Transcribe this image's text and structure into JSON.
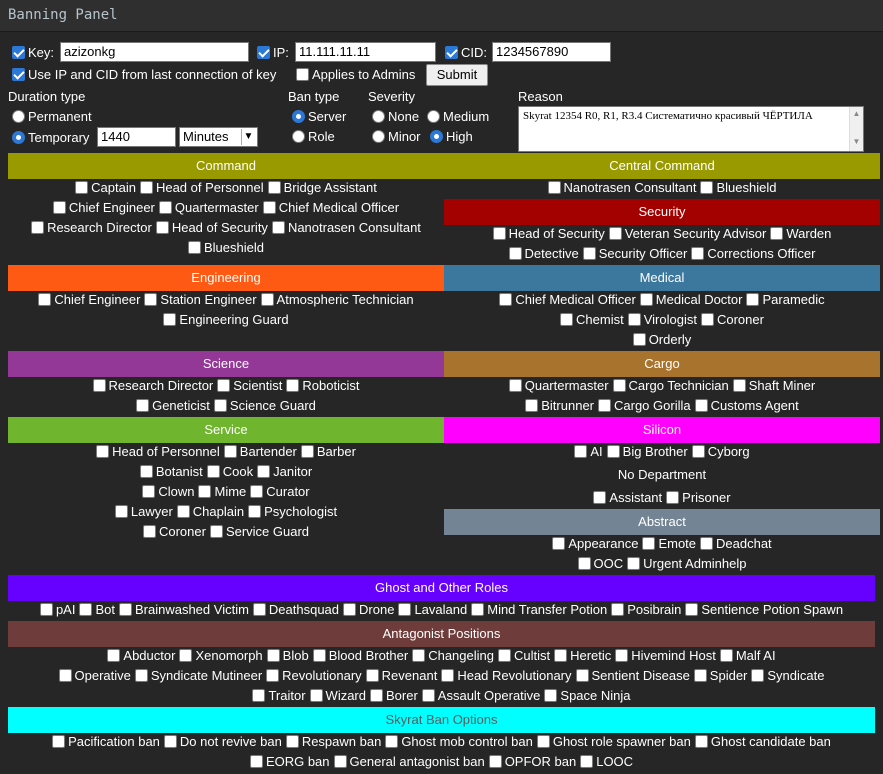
{
  "window": {
    "title": "Banning Panel"
  },
  "form": {
    "key": {
      "label": "Key:",
      "value": "azizonkg",
      "checked": true
    },
    "ip": {
      "label": "IP:",
      "value": "11.111.11.11",
      "checked": true
    },
    "cid": {
      "label": "CID:",
      "value": "1234567890",
      "checked": true
    },
    "use_last": {
      "label": "Use IP and CID from last connection of key",
      "checked": true
    },
    "applies_admins": {
      "label": "Applies to Admins",
      "checked": false
    },
    "submit_label": "Submit",
    "duration": {
      "heading": "Duration type",
      "permanent": "Permanent",
      "temporary": "Temporary",
      "selected": "temporary",
      "amount": "1440",
      "unit": "Minutes"
    },
    "ban_type": {
      "heading": "Ban type",
      "server": "Server",
      "role": "Role",
      "selected": "server"
    },
    "severity": {
      "heading": "Severity",
      "none": "None",
      "medium": "Medium",
      "minor": "Minor",
      "high": "High",
      "selected": "high"
    },
    "reason": {
      "heading": "Reason",
      "text": "Skyrat 12354 R0, R1, R3.4 Систематично красивый ЧЁРТИЛА"
    }
  },
  "colors": {
    "command": "#999900",
    "security": "#a30000",
    "engineering": "#ff5a14",
    "medical": "#3c779e",
    "science": "#943897",
    "cargo": "#a8732c",
    "service": "#6fb52e",
    "silicon": "#ff00ff",
    "abstract": "#738494",
    "ghost": "#6600ff",
    "antagonist": "#6e3c3a",
    "skyrat": "#00ffff"
  },
  "sections": {
    "command": {
      "title": "Command",
      "rows": [
        [
          "Captain",
          "Head of Personnel",
          "Bridge Assistant"
        ],
        [
          "Chief Engineer",
          "Quartermaster",
          "Chief Medical Officer"
        ],
        [
          "Research Director",
          "Head of Security",
          "Nanotrasen Consultant"
        ],
        [
          "Blueshield"
        ]
      ]
    },
    "central": {
      "title": "Central Command",
      "rows": [
        [
          "Nanotrasen Consultant",
          "Blueshield"
        ]
      ]
    },
    "security": {
      "title": "Security",
      "rows": [
        [
          "Head of Security",
          "Veteran Security Advisor",
          "Warden"
        ],
        [
          "Detective",
          "Security Officer",
          "Corrections Officer"
        ]
      ]
    },
    "engineering": {
      "title": "Engineering",
      "rows": [
        [
          "Chief Engineer",
          "Station Engineer",
          "Atmospheric Technician"
        ],
        [
          "Engineering Guard"
        ]
      ]
    },
    "medical": {
      "title": "Medical",
      "rows": [
        [
          "Chief Medical Officer",
          "Medical Doctor",
          "Paramedic"
        ],
        [
          "Chemist",
          "Virologist",
          "Coroner"
        ],
        [
          "Orderly"
        ]
      ]
    },
    "science": {
      "title": "Science",
      "rows": [
        [
          "Research Director",
          "Scientist",
          "Roboticist"
        ],
        [
          "Geneticist",
          "Science Guard"
        ]
      ]
    },
    "cargo": {
      "title": "Cargo",
      "rows": [
        [
          "Quartermaster",
          "Cargo Technician",
          "Shaft Miner"
        ],
        [
          "Bitrunner",
          "Cargo Gorilla",
          "Customs Agent"
        ]
      ]
    },
    "service": {
      "title": "Service",
      "rows": [
        [
          "Head of Personnel",
          "Bartender",
          "Barber"
        ],
        [
          "Botanist",
          "Cook",
          "Janitor"
        ],
        [
          "Clown",
          "Mime",
          "Curator"
        ],
        [
          "Lawyer",
          "Chaplain",
          "Psychologist"
        ],
        [
          "Coroner",
          "Service Guard"
        ]
      ]
    },
    "silicon": {
      "title": "Silicon",
      "rows": [
        [
          "AI",
          "Big Brother",
          "Cyborg"
        ]
      ]
    },
    "nodept": {
      "title": "No Department",
      "rows": [
        [
          "Assistant",
          "Prisoner"
        ]
      ]
    },
    "abstract": {
      "title": "Abstract",
      "rows": [
        [
          "Appearance",
          "Emote",
          "Deadchat"
        ],
        [
          "OOC",
          "Urgent Adminhelp"
        ]
      ]
    },
    "ghost": {
      "title": "Ghost and Other Roles",
      "rows": [
        [
          "pAI",
          "Bot",
          "Brainwashed Victim",
          "Deathsquad",
          "Drone",
          "Lavaland",
          "Mind Transfer Potion",
          "Posibrain",
          "Sentience Potion Spawn"
        ]
      ]
    },
    "antagonist": {
      "title": "Antagonist Positions",
      "rows": [
        [
          "Abductor",
          "Xenomorph",
          "Blob",
          "Blood Brother",
          "Changeling",
          "Cultist",
          "Heretic",
          "Hivemind Host",
          "Malf AI"
        ],
        [
          "Operative",
          "Syndicate Mutineer",
          "Revolutionary",
          "Revenant",
          "Head Revolutionary",
          "Sentient Disease",
          "Spider",
          "Syndicate"
        ],
        [
          "Traitor",
          "Wizard",
          "Borer",
          "Assault Operative",
          "Space Ninja"
        ]
      ]
    },
    "skyrat": {
      "title": "Skyrat Ban Options",
      "rows": [
        [
          "Pacification ban",
          "Do not revive ban",
          "Respawn ban",
          "Ghost mob control ban",
          "Ghost role spawner ban",
          "Ghost candidate ban"
        ],
        [
          "EORG ban",
          "General antagonist ban",
          "OPFOR ban",
          "LOOC"
        ]
      ]
    }
  }
}
